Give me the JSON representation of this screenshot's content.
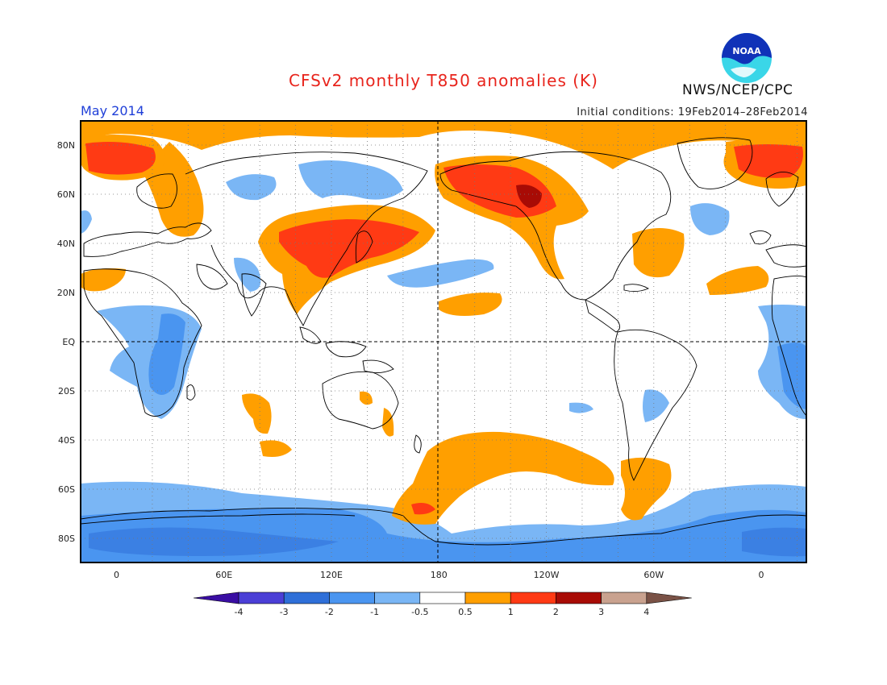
{
  "header": {
    "title": "CFSv2 monthly T850 anomalies (K)",
    "period": "May 2014",
    "initial_conditions": "Initial conditions: 19Feb2014–28Feb2014",
    "agency": "NWS/NCEP/CPC",
    "logo_text": "NOAA"
  },
  "axes": {
    "lat_labels": [
      "80N",
      "60N",
      "40N",
      "20N",
      "EQ",
      "20S",
      "40S",
      "60S",
      "80S"
    ],
    "lon_labels": [
      "0",
      "60E",
      "120E",
      "180",
      "120W",
      "60W",
      "0"
    ]
  },
  "colorbar": {
    "labels": [
      "-4",
      "-3",
      "-2",
      "-1",
      "-0.5",
      "0.5",
      "1",
      "2",
      "3",
      "4"
    ],
    "colors": [
      "#3a0ea3",
      "#4b3fd6",
      "#2f6fd8",
      "#4a95f0",
      "#7ab6f5",
      "#ffffff",
      "#ff9f00",
      "#ff3a14",
      "#a80b05",
      "#c9a28f",
      "#7a5246"
    ]
  }
}
